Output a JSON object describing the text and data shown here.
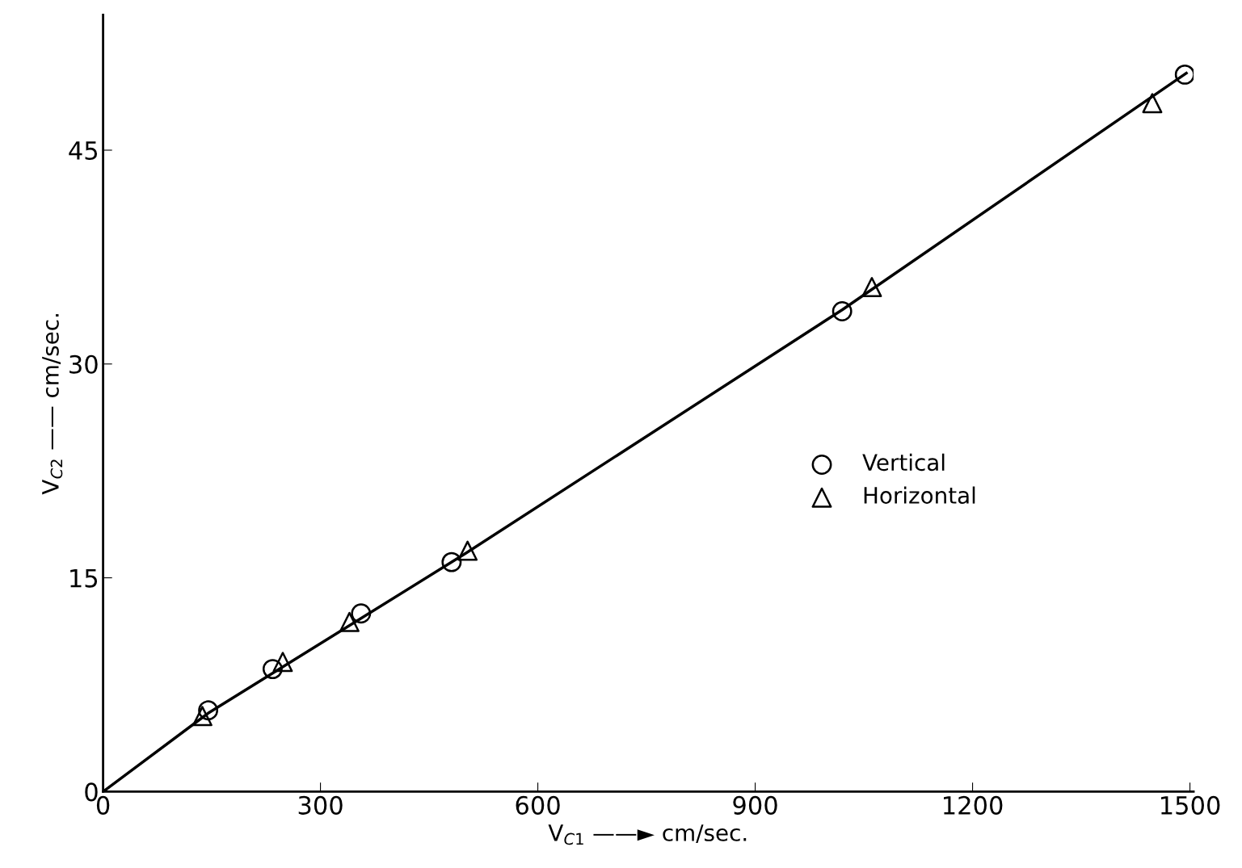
{
  "chart_data": {
    "type": "scatter",
    "xlabel": "V$_{C1}$ ——► cm/sec.",
    "ylabel": "V$_{C2}$ —— cm/sec.",
    "xlim": [
      0,
      1505
    ],
    "ylim": [
      0,
      54.5
    ],
    "xticks": [
      0,
      300,
      600,
      900,
      1200,
      1500
    ],
    "yticks": [
      0,
      15,
      30,
      45
    ],
    "grid": false,
    "legend": "center right",
    "series": [
      {
        "name": "Vertical",
        "marker": "circle",
        "color": "#000000",
        "x": [
          145,
          234,
          356,
          481,
          1020,
          1493
        ],
        "values": [
          5.7,
          8.6,
          12.5,
          16.1,
          33.7,
          50.3
        ]
      },
      {
        "name": "Horizontal",
        "marker": "triangle",
        "color": "#000000",
        "x": [
          137,
          248,
          340,
          503,
          1061,
          1448
        ],
        "values": [
          5.3,
          9.1,
          11.9,
          16.9,
          35.4,
          48.3
        ]
      },
      {
        "type": "line",
        "marker": "none",
        "line_style": "solid",
        "color": "#000000",
        "x": [
          0,
          145,
          500,
          1020,
          1495
        ],
        "values": [
          0,
          5.5,
          16.7,
          33.8,
          50.4
        ]
      }
    ]
  }
}
